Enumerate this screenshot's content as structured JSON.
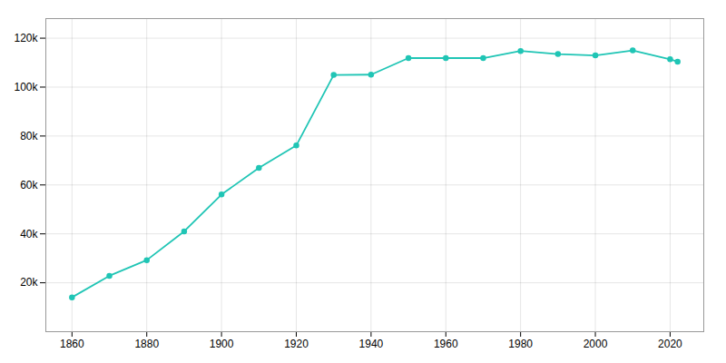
{
  "chart_data": {
    "type": "line",
    "x": [
      1860,
      1870,
      1880,
      1890,
      1900,
      1910,
      1920,
      1930,
      1940,
      1950,
      1960,
      1970,
      1980,
      1990,
      2000,
      2010,
      2020,
      2022
    ],
    "values": [
      14045,
      22849,
      29259,
      41024,
      56100,
      66950,
      76121,
      104969,
      105087,
      111856,
      111856,
      111856,
      114773,
      113504,
      112936,
      115007,
      111388,
      110412
    ],
    "color": "#20c5b5",
    "marker": "circle",
    "xlim": [
      1853,
      2029
    ],
    "xticks": [
      1860,
      1880,
      1900,
      1920,
      1940,
      1960,
      1980,
      2000,
      2020
    ],
    "ylim": [
      0,
      128000
    ],
    "yticks": [
      {
        "value": 20000,
        "label": "20k"
      },
      {
        "value": 40000,
        "label": "40k"
      },
      {
        "value": 60000,
        "label": "60k"
      },
      {
        "value": 80000,
        "label": "80k"
      },
      {
        "value": 100000,
        "label": "100k"
      },
      {
        "value": 120000,
        "label": "120k"
      }
    ],
    "grid": true
  }
}
